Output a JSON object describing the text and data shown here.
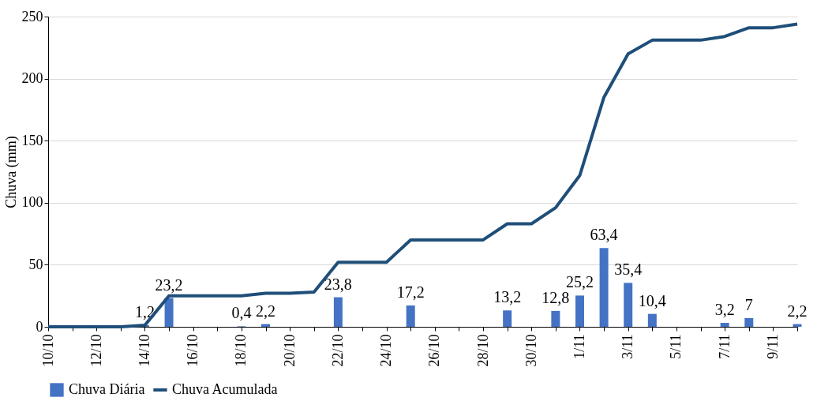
{
  "chart_data": {
    "type": "bar",
    "ylabel": "Chuva (mm)",
    "categories": [
      "10/10",
      null,
      "12/10",
      null,
      "14/10",
      null,
      "16/10",
      null,
      "18/10",
      null,
      "20/10",
      null,
      "22/10",
      null,
      "24/10",
      null,
      "26/10",
      null,
      "28/10",
      null,
      "30/10",
      null,
      "1/11",
      null,
      "3/11",
      null,
      "5/11",
      null,
      "7/11",
      null,
      "9/11",
      null
    ],
    "series": [
      {
        "name": "Chuva Diária",
        "color": "#4472c4",
        "values": [
          0,
          0,
          0,
          0,
          1.2,
          23.2,
          0,
          0,
          0.4,
          2.2,
          0,
          0,
          23.8,
          0,
          0,
          17.2,
          0,
          0,
          0,
          13.2,
          0,
          12.8,
          25.2,
          63.4,
          35.4,
          10.4,
          0,
          0,
          3.2,
          7,
          0,
          2.2
        ],
        "value_labels": [
          null,
          null,
          null,
          null,
          "1,2",
          "23,2",
          null,
          null,
          "0,4",
          "2,2",
          null,
          null,
          "23,8",
          null,
          null,
          "17,2",
          null,
          null,
          null,
          "13,2",
          null,
          "12,8",
          "25,2",
          "63,4",
          "35,4",
          "10,4",
          null,
          null,
          "3,2",
          "7",
          null,
          "2,2"
        ]
      },
      {
        "name": "Chuva Acumulada",
        "type": "line",
        "color": "#1f4e79",
        "values": [
          0,
          0,
          0,
          0,
          1.2,
          25,
          25,
          25,
          25,
          27,
          27,
          28,
          52,
          52,
          52,
          70,
          70,
          70,
          70,
          83,
          83,
          96,
          122,
          185,
          220,
          231,
          231,
          231,
          234,
          241,
          241,
          244
        ]
      }
    ],
    "ylim": [
      0,
      250
    ],
    "yticks": [
      0,
      50,
      100,
      150,
      200,
      250
    ],
    "grid": "y",
    "legend": "bottom"
  }
}
